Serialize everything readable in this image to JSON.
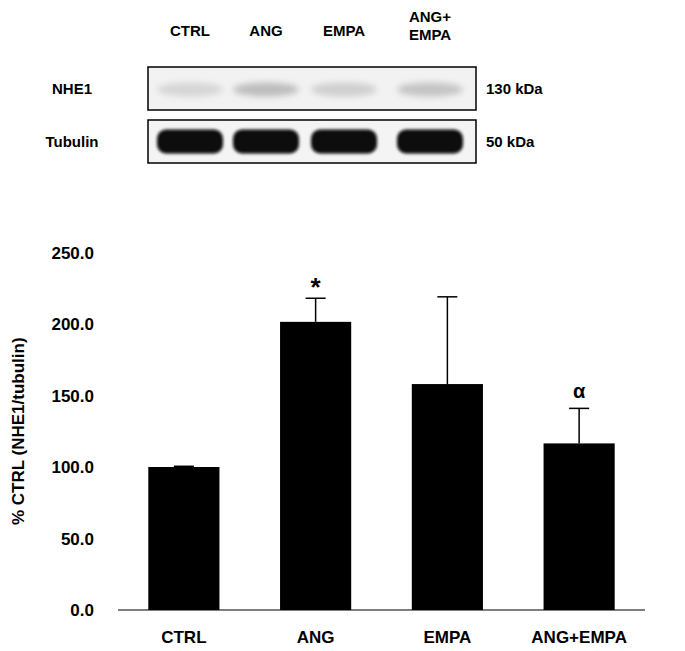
{
  "chart_data": {
    "type": "bar",
    "categories": [
      "CTRL",
      "ANG",
      "EMPA",
      "ANG+EMPA"
    ],
    "values": [
      100,
      201.5,
      158,
      116.5
    ],
    "errors": [
      0.5,
      16.5,
      61,
      24.5
    ],
    "color": "#000000",
    "ylabel": "% CTRL (NHE1/tubulin)",
    "ylim": [
      0,
      250
    ],
    "yticks": [
      {
        "value": 0,
        "label": "0.0"
      },
      {
        "value": 50,
        "label": "50.0"
      },
      {
        "value": 100,
        "label": "100.0"
      },
      {
        "value": 150,
        "label": "150.0"
      },
      {
        "value": 200,
        "label": "200.0"
      },
      {
        "value": 250,
        "label": "250.0"
      }
    ],
    "grid": false,
    "annotations": [
      {
        "text": "*",
        "category": "ANG"
      },
      {
        "text": "α",
        "category": "ANG+EMPA"
      }
    ]
  },
  "blot": {
    "lanes": [
      "CTRL",
      "ANG",
      "EMPA",
      "ANG+EMPA"
    ],
    "rows": [
      {
        "label": "NHE1",
        "size": "130 kDa"
      },
      {
        "label": "Tubulin",
        "size": "50 kDa"
      }
    ]
  }
}
